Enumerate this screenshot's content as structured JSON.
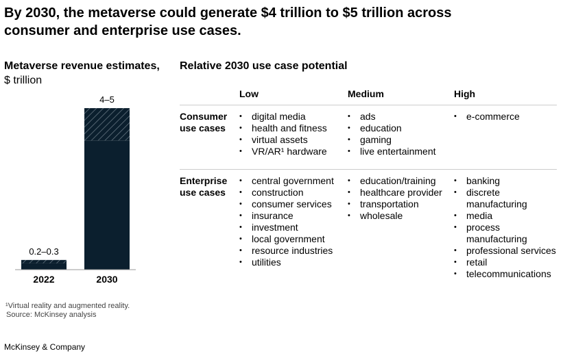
{
  "title": "By 2030, the metaverse could generate $4 trillion to $5 trillion across consumer and enterprise use cases.",
  "chart_data": {
    "type": "range_bar",
    "title": "Metaverse revenue estimates,",
    "subtitle": "$ trillion",
    "categories": [
      "2022",
      "2030"
    ],
    "low": [
      0.2,
      4
    ],
    "high": [
      0.3,
      5
    ],
    "value_labels": [
      "0.2–0.3",
      "4–5"
    ],
    "color": "#0b1f2e"
  },
  "table": {
    "title": "Relative 2030 use case potential",
    "columns": [
      "Low",
      "Medium",
      "High"
    ],
    "rows": [
      {
        "label": "Consumer use cases",
        "cells": [
          [
            "digital media",
            "health and fitness",
            "virtual assets",
            "VR/AR¹ hardware"
          ],
          [
            "ads",
            "education",
            "gaming",
            "live entertainment"
          ],
          [
            "e-commerce"
          ]
        ]
      },
      {
        "label": "Enterprise use cases",
        "cells": [
          [
            "central government",
            "construction",
            "consumer services",
            "insurance",
            "investment",
            "local government",
            "resource industries",
            "utilities"
          ],
          [
            "education/training",
            "healthcare provider",
            "transportation",
            "wholesale"
          ],
          [
            "banking",
            "discrete manufacturing",
            "media",
            "process manufacturing",
            "professional services",
            "retail",
            "telecommunications"
          ]
        ]
      }
    ]
  },
  "footnote": "¹Virtual reality and augmented reality.",
  "source": "Source: McKinsey analysis",
  "brand": "McKinsey & Company"
}
